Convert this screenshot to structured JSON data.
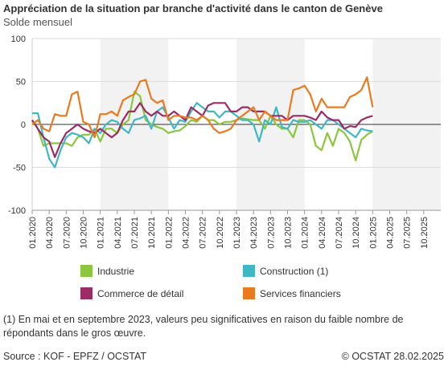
{
  "header": {
    "title": "Appréciation de la situation par branche d'activité dans le canton de Genève",
    "subtitle": "Solde mensuel"
  },
  "footer": {
    "note": "(1) En mai et en septembre 2023, valeurs peu significatives en raison du faible nombre de répondants dans le gros œuvre.",
    "source": "Source : KOF - EPFZ / OCSTAT",
    "copyright": "© OCSTAT 28.02.2025"
  },
  "colors": {
    "industrie": "#8cc63e",
    "construction": "#3fb7c5",
    "commerce": "#9b2c64",
    "services": "#e97a1f",
    "grid": "#dddddd",
    "band": "#f2f2f2",
    "zero": "#333333"
  },
  "chart_data": {
    "type": "line",
    "title": "Appréciation de la situation par branche d'activité dans le canton de Genève",
    "ylabel": "Solde mensuel",
    "ylim": [
      -100,
      100
    ],
    "yticks": [
      100,
      50,
      0,
      -50,
      -100
    ],
    "xlim": [
      "2020-01",
      "2025-12"
    ],
    "xticks": [
      "01.2020",
      "04.2020",
      "07.2020",
      "10.2020",
      "01.2021",
      "04.2021",
      "07.2021",
      "10.2021",
      "01.2022",
      "04.2022",
      "07.2022",
      "10.2022",
      "01.2023",
      "04.2023",
      "07.2023",
      "10.2023",
      "01.2024",
      "04.2024",
      "07.2024",
      "10.2024",
      "01.2025",
      "04.2025",
      "07.2025",
      "10.2025"
    ],
    "legend_position": "bottom",
    "x": [
      "2020-01",
      "2020-02",
      "2020-03",
      "2020-04",
      "2020-05",
      "2020-06",
      "2020-07",
      "2020-08",
      "2020-09",
      "2020-10",
      "2020-11",
      "2020-12",
      "2021-01",
      "2021-02",
      "2021-03",
      "2021-04",
      "2021-05",
      "2021-06",
      "2021-07",
      "2021-08",
      "2021-09",
      "2021-10",
      "2021-11",
      "2021-12",
      "2022-01",
      "2022-02",
      "2022-03",
      "2022-04",
      "2022-05",
      "2022-06",
      "2022-07",
      "2022-08",
      "2022-09",
      "2022-10",
      "2022-11",
      "2022-12",
      "2023-01",
      "2023-02",
      "2023-03",
      "2023-04",
      "2023-05",
      "2023-06",
      "2023-07",
      "2023-08",
      "2023-09",
      "2023-10",
      "2023-11",
      "2023-12",
      "2024-01",
      "2024-02",
      "2024-03",
      "2024-04",
      "2024-05",
      "2024-06",
      "2024-07",
      "2024-08",
      "2024-09",
      "2024-10",
      "2024-11",
      "2024-12",
      "2025-01"
    ],
    "series": [
      {
        "name": "Industrie",
        "key": "industrie",
        "values": [
          5,
          -5,
          -25,
          -22,
          -22,
          -22,
          -22,
          -25,
          -15,
          -12,
          -12,
          -5,
          -20,
          -5,
          -5,
          -10,
          0,
          5,
          38,
          33,
          5,
          0,
          -3,
          -5,
          -10,
          -8,
          -7,
          -2,
          5,
          3,
          10,
          5,
          5,
          0,
          3,
          3,
          5,
          7,
          6,
          5,
          5,
          -5,
          10,
          0,
          -5,
          -5,
          -15,
          5,
          5,
          0,
          -25,
          -30,
          -10,
          -25,
          -5,
          -10,
          -20,
          -42,
          -18,
          -12,
          -8
        ]
      },
      {
        "name": "Construction (1)",
        "key": "construction",
        "values": [
          13,
          13,
          -15,
          -40,
          -50,
          -30,
          -15,
          -10,
          -12,
          -15,
          -22,
          -5,
          -10,
          0,
          5,
          3,
          -5,
          -10,
          5,
          7,
          10,
          -5,
          15,
          20,
          8,
          -5,
          5,
          3,
          15,
          25,
          20,
          15,
          15,
          8,
          15,
          15,
          10,
          5,
          5,
          0,
          -20,
          5,
          0,
          20,
          -3,
          -5,
          5,
          3,
          3,
          5,
          0,
          -5,
          5,
          5,
          0,
          -5,
          -10,
          -15,
          -5,
          -7,
          -8
        ]
      },
      {
        "name": "Commerce de détail",
        "key": "commerce",
        "values": [
          5,
          -5,
          -15,
          -20,
          -38,
          -22,
          -10,
          -5,
          0,
          -5,
          -8,
          -10,
          -5,
          -10,
          -15,
          -10,
          5,
          15,
          15,
          25,
          15,
          10,
          15,
          10,
          10,
          15,
          10,
          5,
          20,
          15,
          10,
          22,
          25,
          25,
          25,
          15,
          15,
          20,
          20,
          15,
          15,
          15,
          10,
          10,
          10,
          5,
          10,
          10,
          10,
          8,
          5,
          15,
          8,
          5,
          5,
          -5,
          -2,
          -3,
          5,
          8,
          10
        ]
      },
      {
        "name": "Services financiers",
        "key": "services",
        "values": [
          0,
          5,
          -5,
          -8,
          12,
          10,
          10,
          35,
          38,
          3,
          0,
          -15,
          12,
          12,
          15,
          10,
          28,
          32,
          35,
          50,
          52,
          30,
          25,
          28,
          5,
          10,
          10,
          8,
          8,
          5,
          10,
          5,
          -5,
          -10,
          -8,
          -5,
          5,
          10,
          15,
          20,
          5,
          15,
          10,
          5,
          5,
          5,
          40,
          42,
          45,
          35,
          15,
          30,
          20,
          20,
          20,
          20,
          32,
          35,
          40,
          55,
          20
        ]
      }
    ]
  }
}
